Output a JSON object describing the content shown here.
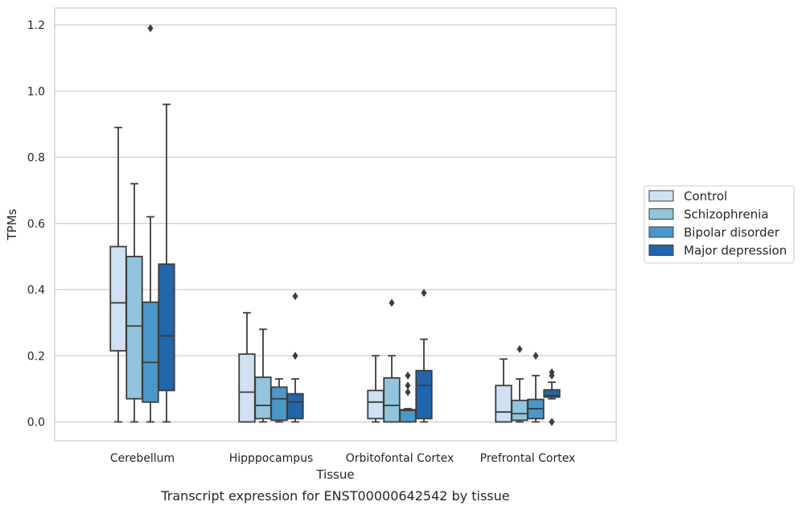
{
  "chart_data": {
    "type": "box",
    "xlabel": "Tissue",
    "ylabel": "TPMs",
    "caption": "Transcript expression for ENST00000642542 by tissue",
    "ylim": [
      -0.06,
      1.25
    ],
    "yticks": [
      "0.0",
      "0.2",
      "0.4",
      "0.6",
      "0.8",
      "1.0",
      "1.2"
    ],
    "categories": [
      "Cerebellum",
      "Hipppocampus",
      "Orbitofontal Cortex",
      "Prefrontal Cortex"
    ],
    "grid": "horizontal",
    "legend_position": "right",
    "series": [
      {
        "name": "Control",
        "color": "#cfe1f2",
        "boxes": [
          {
            "q1": 0.215,
            "median": 0.36,
            "q3": 0.53,
            "whisker_low": 0.0,
            "whisker_high": 0.89,
            "outliers": []
          },
          {
            "q1": 0.0,
            "median": 0.09,
            "q3": 0.205,
            "whisker_low": 0.0,
            "whisker_high": 0.33,
            "outliers": []
          },
          {
            "q1": 0.01,
            "median": 0.06,
            "q3": 0.095,
            "whisker_low": 0.0,
            "whisker_high": 0.2,
            "outliers": []
          },
          {
            "q1": 0.0,
            "median": 0.03,
            "q3": 0.11,
            "whisker_low": 0.0,
            "whisker_high": 0.19,
            "outliers": []
          }
        ]
      },
      {
        "name": "Schizophrenia",
        "color": "#93c4de",
        "boxes": [
          {
            "q1": 0.07,
            "median": 0.29,
            "q3": 0.5,
            "whisker_low": 0.0,
            "whisker_high": 0.72,
            "outliers": []
          },
          {
            "q1": 0.01,
            "median": 0.05,
            "q3": 0.135,
            "whisker_low": 0.0,
            "whisker_high": 0.28,
            "outliers": []
          },
          {
            "q1": 0.0,
            "median": 0.05,
            "q3": 0.133,
            "whisker_low": 0.0,
            "whisker_high": 0.2,
            "outliers": [
              0.36
            ]
          },
          {
            "q1": 0.005,
            "median": 0.025,
            "q3": 0.065,
            "whisker_low": 0.0,
            "whisker_high": 0.13,
            "outliers": [
              0.22
            ]
          }
        ]
      },
      {
        "name": "Bipolar disorder",
        "color": "#4a98c9",
        "boxes": [
          {
            "q1": 0.06,
            "median": 0.18,
            "q3": 0.362,
            "whisker_low": 0.0,
            "whisker_high": 0.62,
            "outliers": [
              1.19
            ]
          },
          {
            "q1": 0.005,
            "median": 0.07,
            "q3": 0.105,
            "whisker_low": 0.0,
            "whisker_high": 0.13,
            "outliers": []
          },
          {
            "q1": 0.0,
            "median": 0.035,
            "q3": 0.037,
            "whisker_low": 0.0,
            "whisker_high": 0.04,
            "outliers": [
              0.14,
              0.11,
              0.09
            ]
          },
          {
            "q1": 0.01,
            "median": 0.04,
            "q3": 0.068,
            "whisker_low": 0.0,
            "whisker_high": 0.14,
            "outliers": [
              0.2
            ]
          }
        ]
      },
      {
        "name": "Major depression",
        "color": "#2166ac",
        "boxes": [
          {
            "q1": 0.095,
            "median": 0.26,
            "q3": 0.477,
            "whisker_low": 0.0,
            "whisker_high": 0.96,
            "outliers": []
          },
          {
            "q1": 0.01,
            "median": 0.06,
            "q3": 0.085,
            "whisker_low": 0.0,
            "whisker_high": 0.13,
            "outliers": [
              0.38,
              0.2
            ]
          },
          {
            "q1": 0.01,
            "median": 0.11,
            "q3": 0.155,
            "whisker_low": 0.0,
            "whisker_high": 0.25,
            "outliers": [
              0.39
            ]
          },
          {
            "q1": 0.075,
            "median": 0.08,
            "q3": 0.097,
            "whisker_low": 0.07,
            "whisker_high": 0.12,
            "outliers": [
              0.15,
              0.14,
              0.0,
              0.0
            ]
          }
        ]
      }
    ]
  }
}
